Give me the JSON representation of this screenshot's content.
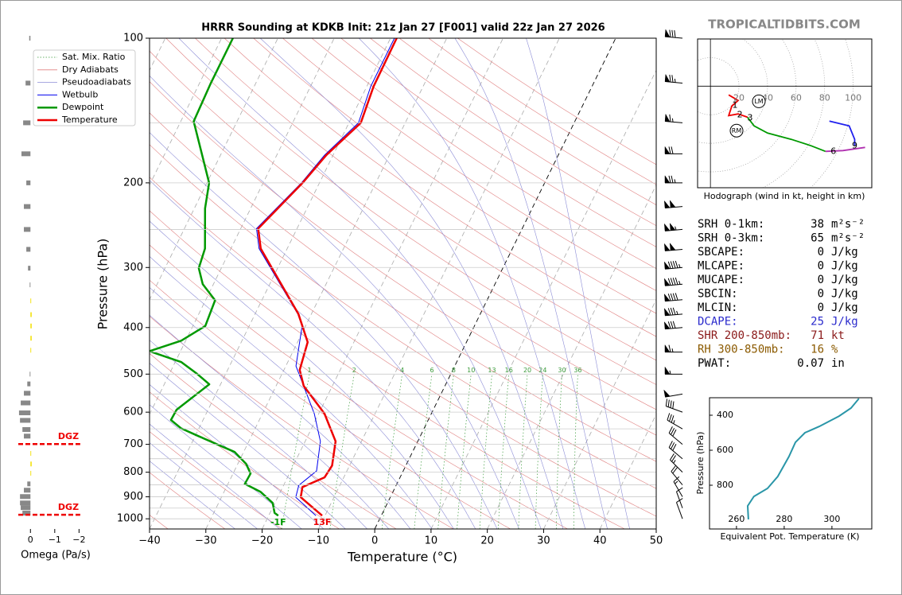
{
  "chart_data": [
    {
      "type": "skewt",
      "title": "HRRR Sounding at KDKB Init: 21z Jan 27 [F001] valid 22z Jan 27 2026",
      "xlabel": "Temperature (°C)",
      "ylabel": "Pressure (hPa)",
      "xlim": [
        -40,
        50
      ],
      "ylim": [
        1050,
        100
      ],
      "log_y": true,
      "xticks": [
        {
          "value": -40,
          "label": "−40"
        },
        {
          "value": -30,
          "label": "−30"
        },
        {
          "value": -20,
          "label": "−20"
        },
        {
          "value": -10,
          "label": "−10"
        },
        0,
        10,
        20,
        30,
        40,
        50
      ],
      "yticks": [
        100,
        200,
        300,
        400,
        500,
        600,
        700,
        800,
        900,
        1000
      ],
      "minor_yticks": [
        150,
        250,
        350,
        450,
        550,
        650,
        750,
        850,
        950
      ],
      "reference_lines": [
        {
          "name": "Sat. Mix. Ratio",
          "color": "#3a9a3a"
        },
        {
          "name": "Dry Adiabats",
          "color": "#e08080"
        },
        {
          "name": "Pseudoadiabats",
          "color": "#8c8cd6"
        }
      ],
      "mixing_ratios": [
        1,
        2,
        4,
        6,
        8,
        10,
        13,
        16,
        20,
        24,
        30,
        36
      ],
      "series": [
        {
          "name": "Wetbulb",
          "color": "#0000ee",
          "linewidth": 1,
          "x": [
            -11.6,
            -16.8,
            -17.3,
            -15.4,
            -17.3,
            -20.8,
            -28.2,
            -30.6,
            -32.4,
            -45,
            -47.2,
            -43.2,
            -41.5,
            -38.3,
            -39.3,
            -39.3
          ],
          "y": [
            985,
            902,
            852,
            795,
            690,
            604,
            481,
            397,
            375,
            274,
            249,
            200,
            175,
            150,
            126,
            100
          ]
        },
        {
          "name": "Dewpoint",
          "color": "#009900",
          "linewidth": 2.5,
          "surface_label": "-1F",
          "x": [
            -18.3,
            -19.2,
            -20.4,
            -23.5,
            -27,
            -26.9,
            -28.5,
            -31.6,
            -39.4,
            -43.2,
            -45.7,
            -45.6,
            -42,
            -45,
            -48.9,
            -55.5,
            -50.8,
            -47.8,
            -48.3,
            -51.9,
            -54,
            -54.6,
            -58.1,
            -59.6,
            -67.7,
            -68,
            -68
          ],
          "y": [
            985,
            972,
            927,
            879,
            846,
            805,
            769,
            726,
            673,
            648,
            623,
            593,
            525,
            500,
            472,
            448,
            426,
            397,
            351,
            325,
            301,
            274,
            226,
            200,
            149,
            124,
            100
          ]
        },
        {
          "name": "Temperature",
          "color": "#ee0000",
          "linewidth": 2.5,
          "surface_label": "13F",
          "x": [
            -10.5,
            -15.9,
            -16.5,
            -13.4,
            -13.1,
            -14.6,
            -19,
            -25.1,
            -27.2,
            -28.2,
            -32.3,
            -44.7,
            -46.9,
            -43,
            -41.2,
            -37.9,
            -38.8,
            -38.9
          ],
          "y": [
            985,
            902,
            859,
            820,
            775,
            690,
            604,
            529,
            490,
            429,
            375,
            274,
            249,
            200,
            175,
            150,
            126,
            100
          ]
        }
      ],
      "winds": {
        "pressures": [
          100,
          124,
          150,
          174,
          200,
          224,
          250,
          275,
          300,
          325,
          350,
          375,
          400,
          450,
          500,
          550,
          600,
          650,
          700,
          750,
          800,
          850,
          900,
          950,
          1000
        ],
        "speeds": [
          80,
          75,
          65,
          70,
          75,
          100,
          105,
          100,
          95,
          95,
          90,
          85,
          80,
          65,
          55,
          50,
          40,
          35,
          30,
          30,
          25,
          20,
          15,
          10,
          10
        ],
        "directions": [
          275,
          275,
          275,
          270,
          270,
          265,
          265,
          265,
          265,
          265,
          265,
          265,
          265,
          270,
          270,
          260,
          290,
          300,
          310,
          310,
          315,
          320,
          330,
          340,
          340
        ]
      }
    },
    {
      "type": "bar",
      "orientation": "horizontal",
      "xlabel": "Omega (Pa/s)",
      "xlim": [
        0.5,
        -2.25
      ],
      "xticks": [
        0,
        {
          "value": -1,
          "label": "−1"
        },
        {
          "value": -2,
          "label": "−2"
        }
      ],
      "ylim": [
        1050,
        100
      ],
      "log_y": true,
      "pressures": [
        100,
        124,
        150,
        174,
        200,
        224,
        250,
        275,
        301,
        326,
        352,
        376,
        397,
        421,
        446,
        500,
        524,
        548,
        574,
        602,
        624,
        652,
        673,
        731,
        769,
        804,
        846,
        872,
        899,
        927,
        948,
        973
      ],
      "values": [
        0.05,
        0.2,
        0.3,
        0.37,
        0.17,
        0.27,
        0.27,
        0.17,
        0.1,
        0.03,
        -0.03,
        -0.05,
        -0.05,
        -0.05,
        -0.03,
        0.03,
        0.13,
        0.27,
        0.4,
        0.47,
        0.43,
        0.33,
        0.27,
        -0.03,
        -0.05,
        -0.03,
        0.13,
        0.27,
        0.43,
        0.43,
        0.4,
        0.33
      ],
      "positive_color": "#888888",
      "negative_color": "#f2e000",
      "dgz_pressures": [
        699,
        981
      ],
      "dgz_labels": [
        "DGZ",
        "DGZ"
      ],
      "dgz_color": "#ee0000"
    },
    {
      "type": "hodograph",
      "title": "Hodograph (wind in kt, height in km)",
      "xlim": [
        -9,
        113
      ],
      "ylim": [
        -71,
        33
      ],
      "rings": [
        20,
        40,
        60,
        80,
        100
      ],
      "series": [
        {
          "color": "#ee0000",
          "u": [
            12.8,
            19.4,
            15,
            12.8,
            19.4,
            26
          ],
          "v": [
            -6.1,
            -10,
            -13.9,
            -20.6,
            -19.4,
            -21.7
          ]
        },
        {
          "color": "#009900",
          "u": [
            26,
            30.6,
            40,
            56.7,
            70.6,
            80.6
          ],
          "v": [
            -21.7,
            -27.8,
            -32.8,
            -37.2,
            -41.7,
            -45.6
          ]
        },
        {
          "color": "#b030b0",
          "u": [
            80.6,
            92.8,
            108.3
          ],
          "v": [
            -45.6,
            -45,
            -42.8
          ]
        },
        {
          "color": "#2020ee",
          "u": [
            101,
            101,
            97.2,
            83.3
          ],
          "v": [
            -41.7,
            -37.2,
            -27.8,
            -24.4
          ]
        }
      ],
      "height_labels": {
        "labels": [
          "1",
          "2",
          "3",
          "6",
          "9"
        ],
        "u": [
          17.2,
          20.6,
          27.8,
          86.1,
          101
        ],
        "v": [
          -13.3,
          -20,
          -22.2,
          -45.6,
          -41.7
        ]
      },
      "storm_motion": {
        "labels": [
          "LM",
          "RM"
        ],
        "u": [
          33.9,
          18.3
        ],
        "v": [
          -10.6,
          -31.1
        ]
      }
    },
    {
      "type": "line",
      "xlabel": "Equivalent Pot. Temperature (K)",
      "ylabel": "Pressure (hPa)",
      "xlim": [
        248.7,
        316.7
      ],
      "ylim": [
        1050,
        300
      ],
      "xticks": [
        260,
        280,
        300
      ],
      "yticks": [
        400,
        600,
        800
      ],
      "series": [
        {
          "color": "#2a96a8",
          "x": [
            265,
            264.7,
            267.3,
            273,
            277.3,
            282,
            284.7,
            288.7,
            294.7,
            303,
            308,
            311.3
          ],
          "values": [
            995,
            918,
            864,
            818,
            750,
            636,
            555,
            500,
            464,
            405,
            359,
            305
          ]
        }
      ]
    }
  ],
  "stats": {
    "rows": [
      {
        "label": "SRH 0-1km:",
        "value": 38,
        "unit": "m²s⁻²",
        "color": "#000000"
      },
      {
        "label": "SRH 0-3km:",
        "value": 65,
        "unit": "m²s⁻²",
        "color": "#000000"
      },
      {
        "label": "SBCAPE:",
        "value": 0,
        "unit": "J/kg",
        "color": "#000000"
      },
      {
        "label": "MLCAPE:",
        "value": 0,
        "unit": "J/kg",
        "color": "#000000"
      },
      {
        "label": "MUCAPE:",
        "value": 0,
        "unit": "J/kg",
        "color": "#000000"
      },
      {
        "label": "SBCIN:",
        "value": 0,
        "unit": "J/kg",
        "color": "#000000"
      },
      {
        "label": "MLCIN:",
        "value": 0,
        "unit": "J/kg",
        "color": "#000000"
      },
      {
        "label": "DCAPE:",
        "value": 25,
        "unit": "J/kg",
        "color": "#2a2acc"
      },
      {
        "label": "SHR 200-850mb:",
        "value": 71,
        "unit": "kt",
        "color": "#8b1a1a"
      },
      {
        "label": "RH 300-850mb:",
        "value": 16,
        "unit": "%",
        "color": "#8b5a00"
      },
      {
        "label": "PWAT:",
        "value": 0.07,
        "unit": "in",
        "color": "#000000"
      }
    ]
  },
  "watermark": "TROPICALTIDBITS.COM"
}
